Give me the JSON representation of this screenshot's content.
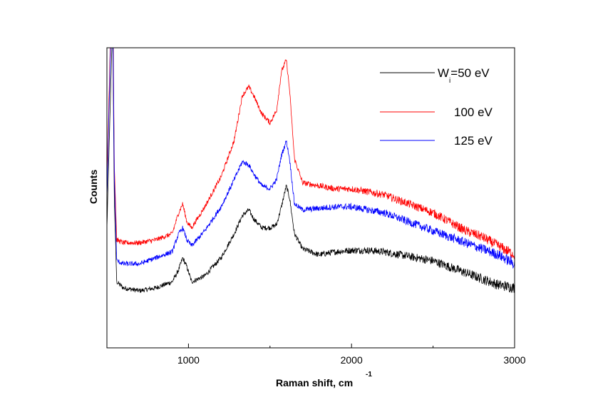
{
  "chart_data": {
    "type": "line",
    "xlabel": "Raman shift, cm",
    "xlabel_superscript": "-1",
    "ylabel": "Counts",
    "xlim": [
      500,
      3000
    ],
    "ylim": [
      0,
      100
    ],
    "x_ticks": [
      1000,
      2000,
      3000
    ],
    "y_ticks_labeled": false,
    "grid": false,
    "legend_position": "top-right",
    "x": [
      500,
      520,
      535,
      545,
      560,
      600,
      700,
      800,
      900,
      940,
      965,
      990,
      1020,
      1100,
      1200,
      1280,
      1330,
      1370,
      1400,
      1450,
      1500,
      1540,
      1570,
      1600,
      1620,
      1650,
      1700,
      1800,
      1900,
      2000,
      2100,
      2200,
      2300,
      2400,
      2500,
      2600,
      2700,
      2800,
      2900,
      3000
    ],
    "series": [
      {
        "name": "W_i=50 eV",
        "legend_main": "W",
        "legend_sub": "i",
        "legend_rest": "=50 eV",
        "color": "#000000",
        "values": [
          40,
          80,
          110,
          50,
          22,
          20,
          19,
          20,
          22,
          26,
          30,
          27,
          22,
          24,
          30,
          38,
          44,
          46,
          43,
          40,
          40,
          41,
          47,
          54,
          50,
          38,
          33,
          31,
          32,
          32.5,
          32.5,
          32,
          31,
          30,
          29,
          27,
          25,
          23,
          21,
          20
        ]
      },
      {
        "name": "100 eV",
        "color": "#ff0000",
        "values": [
          55,
          100,
          125,
          62,
          36,
          35,
          35,
          36,
          38,
          45,
          48,
          42,
          40,
          47,
          57,
          69,
          84,
          87,
          84,
          78,
          75,
          79,
          92,
          96,
          86,
          63,
          55,
          54,
          53,
          53,
          52,
          51,
          49,
          47,
          45,
          42,
          39,
          37,
          34,
          31
        ]
      },
      {
        "name": "125 eV",
        "color": "#0000ff",
        "values": [
          50,
          95,
          120,
          58,
          29,
          28,
          28,
          30,
          32,
          38,
          40,
          36,
          34,
          39,
          47,
          56,
          62,
          61,
          58,
          54,
          53,
          56,
          64,
          69,
          63,
          48,
          46,
          46.5,
          47,
          47,
          46,
          45,
          43,
          41,
          39,
          37,
          35,
          33,
          31,
          28
        ]
      }
    ]
  }
}
